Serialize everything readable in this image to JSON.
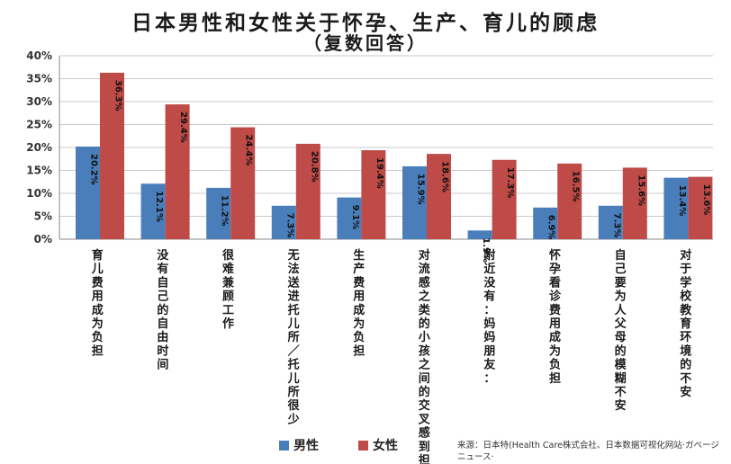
{
  "chart_data": {
    "type": "bar",
    "title": "日本男性和女性关于怀孕、生产、育儿的顾虑",
    "subtitle": "（复数回答）",
    "categories": [
      "育儿费用成为负担",
      "没有自己的自由时间",
      "很难兼顾工作",
      "无法送进托儿所／托儿所很少",
      "生产费用成为负担",
      "对流感之类的小孩之间的交叉感到担心",
      "附近没有：妈妈朋友：",
      "怀孕看诊费用成为负担",
      "自己要为人父母的模糊不安",
      "对于学校教育环境的不安"
    ],
    "series": [
      {
        "name": "男性",
        "color": "#4a7ebb",
        "values": [
          20.2,
          12.1,
          11.2,
          7.3,
          9.1,
          15.9,
          1.9,
          6.9,
          7.3,
          13.4
        ],
        "labels": [
          "20.2%",
          "12.1%",
          "11.2%",
          "7.3%",
          "9.1%",
          "15.9%",
          "1.9%",
          "6.9%",
          "7.3%",
          "13.4%"
        ]
      },
      {
        "name": "女性",
        "color": "#be4b48",
        "values": [
          36.3,
          29.4,
          24.4,
          20.8,
          19.4,
          18.6,
          17.3,
          16.5,
          15.6,
          13.6
        ],
        "labels": [
          "36.3%",
          "29.4%",
          "24.4%",
          "20.8%",
          "19.4%",
          "18.6%",
          "17.3%",
          "16.5%",
          "15.6%",
          "13.6%"
        ]
      }
    ],
    "yticks": [
      "0%",
      "5%",
      "10%",
      "15%",
      "20%",
      "25%",
      "30%",
      "35%",
      "40%"
    ],
    "ylim": [
      0,
      40
    ],
    "grid": true,
    "legend_position": "bottom-left",
    "source": "来源：日本特(Health Care株式会社、日本数据可视化网站·ガベージニュース·"
  }
}
